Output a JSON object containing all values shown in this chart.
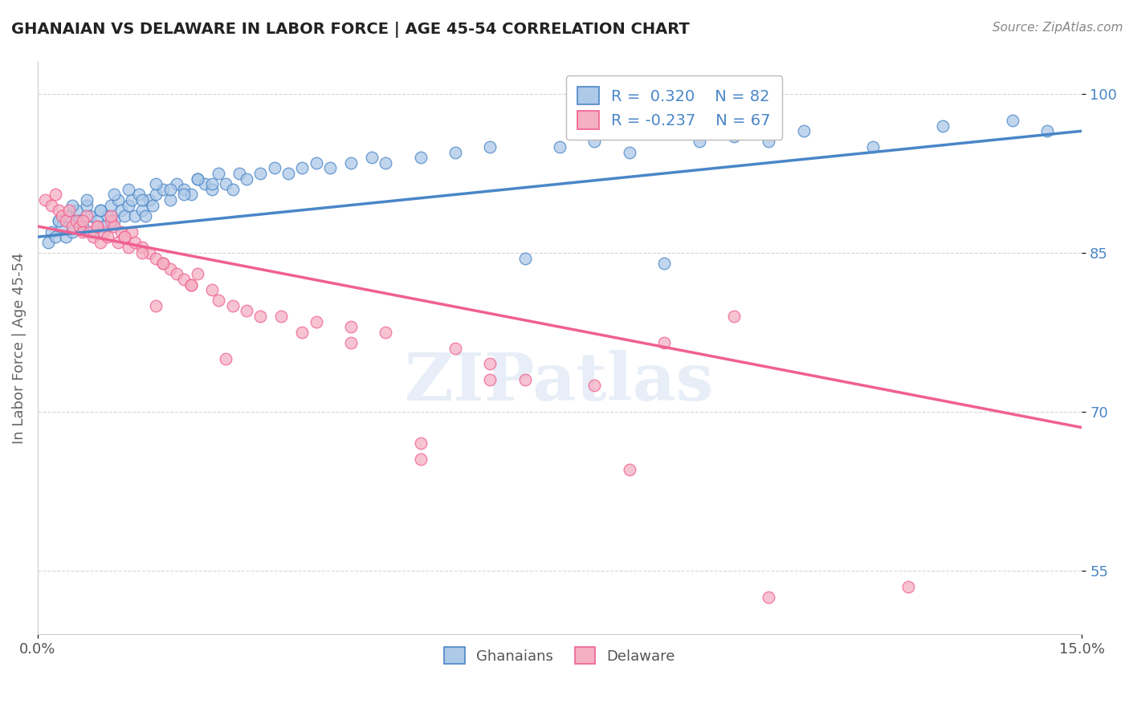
{
  "title": "GHANAIAN VS DELAWARE IN LABOR FORCE | AGE 45-54 CORRELATION CHART",
  "source": "Source: ZipAtlas.com",
  "ylabel": "In Labor Force | Age 45-54",
  "xlim": [
    0.0,
    15.0
  ],
  "ylim": [
    49.0,
    103.0
  ],
  "x_ticks": [
    0.0,
    15.0
  ],
  "x_tick_labels": [
    "0.0%",
    "15.0%"
  ],
  "y_ticks": [
    55.0,
    70.0,
    85.0,
    100.0
  ],
  "y_tick_labels": [
    "55.0%",
    "70.0%",
    "85.0%",
    "100.0%"
  ],
  "blue_R": 0.32,
  "blue_N": 82,
  "pink_R": -0.237,
  "pink_N": 67,
  "blue_color": "#adc9e8",
  "pink_color": "#f4afc3",
  "blue_line_color": "#4a86c8",
  "pink_line_color": "#f06090",
  "legend_blue_label": "Ghanaians",
  "legend_pink_label": "Delaware",
  "watermark": "ZIPatlas",
  "blue_trend_x0": 0.0,
  "blue_trend_y0": 86.5,
  "blue_trend_x1": 15.0,
  "blue_trend_y1": 96.5,
  "pink_trend_x0": 0.0,
  "pink_trend_y0": 87.5,
  "pink_trend_x1": 15.0,
  "pink_trend_y1": 68.5,
  "blue_scatter_x": [
    0.15,
    0.2,
    0.25,
    0.3,
    0.35,
    0.4,
    0.45,
    0.5,
    0.55,
    0.6,
    0.65,
    0.7,
    0.75,
    0.8,
    0.85,
    0.9,
    0.95,
    1.0,
    1.05,
    1.1,
    1.15,
    1.2,
    1.25,
    1.3,
    1.35,
    1.4,
    1.45,
    1.5,
    1.55,
    1.6,
    1.65,
    1.7,
    1.8,
    1.9,
    2.0,
    2.1,
    2.2,
    2.3,
    2.4,
    2.5,
    2.6,
    2.7,
    2.8,
    2.9,
    3.0,
    3.2,
    3.4,
    3.6,
    3.8,
    4.0,
    4.2,
    4.5,
    4.8,
    5.0,
    5.5,
    6.0,
    6.5,
    7.0,
    7.5,
    8.0,
    8.5,
    9.0,
    9.5,
    10.0,
    10.5,
    11.0,
    12.0,
    13.0,
    14.0,
    14.5,
    0.3,
    0.5,
    0.7,
    0.9,
    1.1,
    1.3,
    1.5,
    1.7,
    1.9,
    2.1,
    2.3,
    2.5
  ],
  "blue_scatter_y": [
    86.0,
    87.0,
    86.5,
    88.0,
    87.5,
    86.5,
    88.5,
    87.0,
    89.0,
    88.0,
    87.5,
    89.5,
    88.5,
    87.0,
    88.0,
    89.0,
    87.5,
    88.5,
    89.5,
    88.0,
    90.0,
    89.0,
    88.5,
    89.5,
    90.0,
    88.5,
    90.5,
    89.0,
    88.5,
    90.0,
    89.5,
    90.5,
    91.0,
    90.0,
    91.5,
    91.0,
    90.5,
    92.0,
    91.5,
    91.0,
    92.5,
    91.5,
    91.0,
    92.5,
    92.0,
    92.5,
    93.0,
    92.5,
    93.0,
    93.5,
    93.0,
    93.5,
    94.0,
    93.5,
    94.0,
    94.5,
    95.0,
    84.5,
    95.0,
    95.5,
    94.5,
    84.0,
    95.5,
    96.0,
    95.5,
    96.5,
    95.0,
    97.0,
    97.5,
    96.5,
    88.0,
    89.5,
    90.0,
    89.0,
    90.5,
    91.0,
    90.0,
    91.5,
    91.0,
    90.5,
    92.0,
    91.5
  ],
  "pink_scatter_x": [
    0.1,
    0.2,
    0.3,
    0.35,
    0.4,
    0.5,
    0.55,
    0.6,
    0.65,
    0.7,
    0.75,
    0.8,
    0.85,
    0.9,
    0.95,
    1.0,
    1.05,
    1.1,
    1.15,
    1.2,
    1.25,
    1.3,
    1.35,
    1.4,
    1.5,
    1.6,
    1.7,
    1.8,
    1.9,
    2.0,
    2.1,
    2.2,
    2.3,
    2.5,
    2.8,
    3.0,
    3.5,
    4.0,
    4.5,
    5.0,
    5.5,
    6.0,
    6.5,
    7.0,
    8.0,
    9.0,
    10.0,
    0.25,
    0.45,
    0.65,
    0.85,
    1.05,
    1.25,
    1.5,
    1.8,
    2.2,
    2.6,
    3.2,
    3.8,
    4.5,
    5.5,
    6.5,
    8.5,
    10.5,
    12.5,
    1.7,
    2.7
  ],
  "pink_scatter_y": [
    90.0,
    89.5,
    89.0,
    88.5,
    88.0,
    87.5,
    88.0,
    87.5,
    87.0,
    88.5,
    87.0,
    86.5,
    87.5,
    86.0,
    87.0,
    86.5,
    88.0,
    87.5,
    86.0,
    87.0,
    86.5,
    85.5,
    87.0,
    86.0,
    85.5,
    85.0,
    84.5,
    84.0,
    83.5,
    83.0,
    82.5,
    82.0,
    83.0,
    81.5,
    80.0,
    79.5,
    79.0,
    78.5,
    78.0,
    77.5,
    65.5,
    76.0,
    74.5,
    73.0,
    72.5,
    76.5,
    79.0,
    90.5,
    89.0,
    88.0,
    87.5,
    88.5,
    86.5,
    85.0,
    84.0,
    82.0,
    80.5,
    79.0,
    77.5,
    76.5,
    67.0,
    73.0,
    64.5,
    52.5,
    53.5,
    80.0,
    75.0
  ]
}
